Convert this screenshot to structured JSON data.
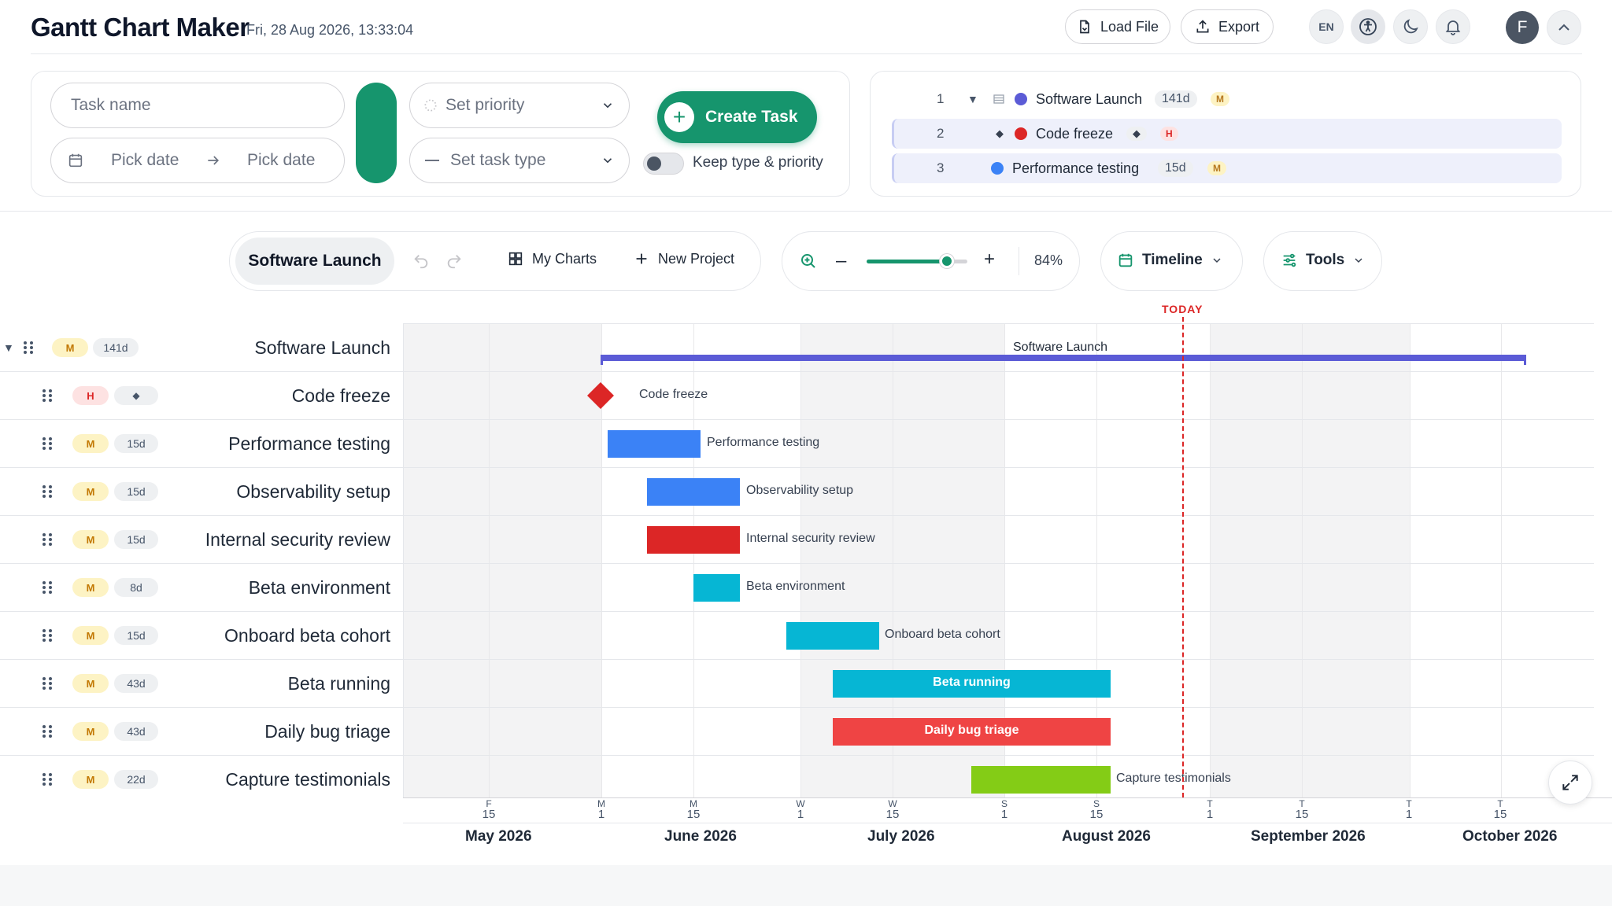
{
  "header": {
    "title": "Gantt Chart Maker",
    "datetime": "Fri, 28 Aug 2026, 13:33:04",
    "load_label": "Load File",
    "export_label": "Export",
    "lang": "EN",
    "avatar_initial": "F"
  },
  "form": {
    "task_name_placeholder": "Task name",
    "start_date_placeholder": "Pick date",
    "end_date_placeholder": "Pick date",
    "priority_placeholder": "Set priority",
    "type_placeholder": "Set task type",
    "create_label": "Create Task",
    "keep_label": "Keep type & priority",
    "swatch_color": "#16956d"
  },
  "task_list": [
    {
      "num": "1",
      "name": "Software Launch",
      "duration": "141d",
      "priority": "M",
      "color": "#5b5bd6"
    },
    {
      "num": "2",
      "name": "Code freeze",
      "duration": "◆",
      "priority": "H",
      "color": "#dc2626"
    },
    {
      "num": "3",
      "name": "Performance testing",
      "duration": "15d",
      "priority": "M",
      "color": "#3b82f6"
    }
  ],
  "toolbar": {
    "project": "Software Launch",
    "my_charts": "My Charts",
    "new_project": "New Project",
    "zoom_level": "84%",
    "zoom_fraction": 0.8,
    "view_label": "Timeline",
    "tools_label": "Tools"
  },
  "gantt": {
    "today_label": "TODAY",
    "rows": [
      {
        "name": "Software Launch",
        "priority": "M",
        "duration": "141d",
        "type": "project"
      },
      {
        "name": "Code freeze",
        "priority": "H",
        "duration": "◆",
        "type": "milestone"
      },
      {
        "name": "Performance testing",
        "priority": "M",
        "duration": "15d",
        "type": "task"
      },
      {
        "name": "Observability setup",
        "priority": "M",
        "duration": "15d",
        "type": "task"
      },
      {
        "name": "Internal security review",
        "priority": "M",
        "duration": "15d",
        "type": "task"
      },
      {
        "name": "Beta environment",
        "priority": "M",
        "duration": "8d",
        "type": "task"
      },
      {
        "name": "Onboard beta cohort",
        "priority": "M",
        "duration": "15d",
        "type": "task"
      },
      {
        "name": "Beta running",
        "priority": "M",
        "duration": "43d",
        "type": "task"
      },
      {
        "name": "Daily bug triage",
        "priority": "M",
        "duration": "43d",
        "type": "task"
      },
      {
        "name": "Capture testimonials",
        "priority": "M",
        "duration": "22d",
        "type": "task"
      }
    ],
    "bar_labels": {
      "project": "Software Launch",
      "milestone": "Code freeze",
      "t1": "Performance testing",
      "t2": "Observability setup",
      "t3": "Internal security review",
      "t4": "Beta environment",
      "t5": "Onboard beta cohort",
      "t6": "Beta running",
      "t7": "Daily bug triage",
      "t8": "Capture testimonials"
    },
    "colors": {
      "project": "#5b5bd6",
      "milestone": "#dc2626",
      "blue": "#3b82f6",
      "red": "#dc2626",
      "cyan": "#06b6d4",
      "bugred": "#ef4444",
      "lime": "#84cc16",
      "today": "#dc2626"
    },
    "ticks": [
      {
        "dow": "F",
        "day": "15"
      },
      {
        "dow": "M",
        "day": "1"
      },
      {
        "dow": "M",
        "day": "15"
      },
      {
        "dow": "W",
        "day": "1"
      },
      {
        "dow": "W",
        "day": "15"
      },
      {
        "dow": "S",
        "day": "1"
      },
      {
        "dow": "S",
        "day": "15"
      },
      {
        "dow": "T",
        "day": "1"
      },
      {
        "dow": "T",
        "day": "15"
      },
      {
        "dow": "T",
        "day": "1"
      },
      {
        "dow": "T",
        "day": "15"
      }
    ],
    "months": [
      "May 2026",
      "June 2026",
      "July 2026",
      "August 2026",
      "September 2026",
      "October 2026"
    ]
  }
}
